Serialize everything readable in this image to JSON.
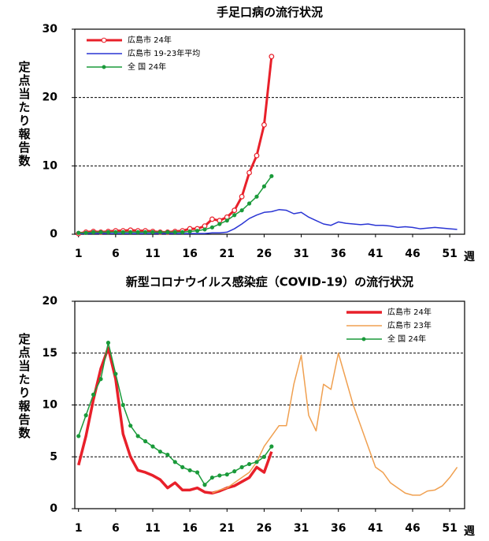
{
  "chart_data": [
    {
      "type": "line",
      "title": "手足口病の流行状況",
      "ylabel": "定点当たり報告数",
      "xlabel": "週",
      "x": [
        1,
        2,
        3,
        4,
        5,
        6,
        7,
        8,
        9,
        10,
        11,
        12,
        13,
        14,
        15,
        16,
        17,
        18,
        19,
        20,
        21,
        22,
        23,
        24,
        25,
        26,
        27,
        28,
        29,
        30,
        31,
        32,
        33,
        34,
        35,
        36,
        37,
        38,
        39,
        40,
        41,
        42,
        43,
        44,
        45,
        46,
        47,
        48,
        49,
        50,
        51,
        52
      ],
      "xlim": [
        0.5,
        53
      ],
      "xticks": [
        1,
        6,
        11,
        16,
        21,
        26,
        31,
        36,
        41,
        46,
        51
      ],
      "ylim": [
        0,
        30
      ],
      "yticks": [
        0,
        10,
        20,
        30
      ],
      "grid": true,
      "legend": "upper left",
      "series": [
        {
          "name": "広島市 24年",
          "color": "#e8202a",
          "marker": "circle",
          "width": 3,
          "values": [
            0.1,
            0.3,
            0.4,
            0.3,
            0.4,
            0.5,
            0.5,
            0.6,
            0.5,
            0.5,
            0.4,
            0.3,
            0.3,
            0.4,
            0.5,
            0.8,
            0.8,
            1.2,
            2.2,
            2.0,
            2.5,
            3.5,
            5.5,
            9,
            11.5,
            16,
            26,
            null,
            null,
            null,
            null,
            null,
            null,
            null,
            null,
            null,
            null,
            null,
            null,
            null,
            null,
            null,
            null,
            null,
            null,
            null,
            null,
            null,
            null,
            null,
            null,
            null
          ]
        },
        {
          "name": "広島市 19-23年平均",
          "color": "#2a35d4",
          "marker": "none",
          "width": 1.5,
          "values": [
            0.1,
            0.1,
            0.1,
            0.1,
            0.1,
            0.1,
            0.1,
            0.1,
            0.1,
            0.1,
            0.1,
            0.1,
            0.1,
            0.1,
            0.1,
            0.1,
            0.1,
            0.1,
            0.2,
            0.2,
            0.3,
            0.8,
            1.5,
            2.3,
            2.8,
            3.2,
            3.3,
            3.6,
            3.5,
            3.0,
            3.2,
            2.5,
            2.0,
            1.5,
            1.3,
            1.8,
            1.6,
            1.5,
            1.4,
            1.5,
            1.3,
            1.3,
            1.2,
            1.0,
            1.1,
            1.0,
            0.8,
            0.9,
            1.0,
            0.9,
            0.8,
            0.7
          ]
        },
        {
          "name": "全 国 24年",
          "color": "#1a9a3a",
          "marker": "dot",
          "width": 1.5,
          "values": [
            0.2,
            0.2,
            0.3,
            0.3,
            0.3,
            0.3,
            0.3,
            0.3,
            0.3,
            0.3,
            0.3,
            0.3,
            0.3,
            0.3,
            0.3,
            0.4,
            0.5,
            0.7,
            1.0,
            1.5,
            2.0,
            2.8,
            3.5,
            4.5,
            5.5,
            7.0,
            8.5,
            null,
            null,
            null,
            null,
            null,
            null,
            null,
            null,
            null,
            null,
            null,
            null,
            null,
            null,
            null,
            null,
            null,
            null,
            null,
            null,
            null,
            null,
            null,
            null,
            null
          ]
        }
      ]
    },
    {
      "type": "line",
      "title": "新型コロナウイルス感染症（COVID-19）の流行状況",
      "ylabel": "定点当たり報告数",
      "xlabel": "週",
      "x": [
        1,
        2,
        3,
        4,
        5,
        6,
        7,
        8,
        9,
        10,
        11,
        12,
        13,
        14,
        15,
        16,
        17,
        18,
        19,
        20,
        21,
        22,
        23,
        24,
        25,
        26,
        27,
        28,
        29,
        30,
        31,
        32,
        33,
        34,
        35,
        36,
        37,
        38,
        39,
        40,
        41,
        42,
        43,
        44,
        45,
        46,
        47,
        48,
        49,
        50,
        51,
        52
      ],
      "xlim": [
        0.5,
        53
      ],
      "xticks": [
        1,
        6,
        11,
        16,
        21,
        26,
        31,
        36,
        41,
        46,
        51
      ],
      "ylim": [
        0,
        20
      ],
      "yticks": [
        0,
        5,
        10,
        15,
        20
      ],
      "grid": true,
      "legend": "upper right",
      "series": [
        {
          "name": "広島市 24年",
          "color": "#e8202a",
          "marker": "none",
          "width": 3.5,
          "values": [
            4.2,
            7,
            10.5,
            13.5,
            15.5,
            12.5,
            7.2,
            5,
            3.7,
            3.5,
            3.2,
            2.8,
            2.0,
            2.5,
            1.8,
            1.8,
            2.0,
            1.6,
            1.5,
            1.7,
            2.0,
            2.2,
            2.6,
            3.0,
            4.0,
            3.5,
            5.5,
            null,
            null,
            null,
            null,
            null,
            null,
            null,
            null,
            null,
            null,
            null,
            null,
            null,
            null,
            null,
            null,
            null,
            null,
            null,
            null,
            null,
            null,
            null,
            null,
            null
          ]
        },
        {
          "name": "広島市 23年",
          "color": "#f0a050",
          "marker": "none",
          "width": 1.5,
          "values": [
            null,
            null,
            null,
            null,
            null,
            null,
            null,
            null,
            null,
            null,
            null,
            null,
            null,
            null,
            null,
            null,
            null,
            null,
            1.5,
            1.8,
            2.0,
            2.5,
            3,
            3.5,
            4.5,
            6,
            7,
            8,
            8,
            12,
            14.8,
            9,
            7.5,
            12,
            11.5,
            15,
            12.5,
            10,
            8,
            6,
            4,
            3.5,
            2.5,
            2,
            1.5,
            1.3,
            1.3,
            1.7,
            1.8,
            2.2,
            3,
            4
          ]
        },
        {
          "name": "全 国 24年",
          "color": "#1a9a3a",
          "marker": "dot",
          "width": 1.5,
          "values": [
            7,
            9,
            11,
            12.5,
            16,
            13,
            10,
            8,
            7,
            6.5,
            6,
            5.5,
            5.2,
            4.5,
            4,
            3.7,
            3.5,
            2.3,
            3,
            3.2,
            3.3,
            3.6,
            4,
            4.3,
            4.5,
            5,
            6,
            null,
            null,
            null,
            null,
            null,
            null,
            null,
            null,
            null,
            null,
            null,
            null,
            null,
            null,
            null,
            null,
            null,
            null,
            null,
            null,
            null,
            null,
            null,
            null,
            null
          ]
        }
      ]
    }
  ]
}
